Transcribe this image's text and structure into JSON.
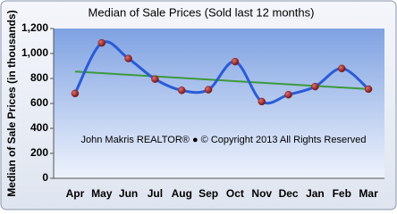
{
  "chart_data": {
    "type": "line",
    "title": "Median of Sale Prices (Sold last 12 months)",
    "y_label": "Median of Sale Prices (in thousands)",
    "annotation": "John Makris REALTOR®  ●  © Copyright 2013 All Rights Reserved",
    "categories": [
      "Apr",
      "May",
      "Jun",
      "Jul",
      "Aug",
      "Sep",
      "Oct",
      "Nov",
      "Dec",
      "Jan",
      "Feb",
      "Mar"
    ],
    "series": [
      {
        "color": "#2a5bd7",
        "values": [
          680,
          1085,
          960,
          795,
          705,
          710,
          935,
          615,
          670,
          735,
          880,
          715
        ]
      }
    ],
    "trend": {
      "color": "#3c9a3c",
      "values": [
        855,
        715
      ]
    },
    "marker_color": "#8b1a1a",
    "ylim": [
      0,
      1200
    ],
    "yticks": [
      0,
      200,
      400,
      600,
      800,
      {
        "value": 1000,
        "label": "1,000"
      },
      {
        "value": 1200,
        "label": "1,200"
      }
    ],
    "grid": false
  }
}
